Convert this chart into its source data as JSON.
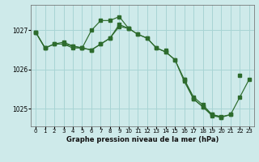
{
  "title": "Graphe pression niveau de la mer (hPa)",
  "bg_color": "#ceeaea",
  "grid_color": "#a8d4d4",
  "line_color": "#2d6b2d",
  "marker_color": "#2d6b2d",
  "ylim": [
    1024.55,
    1027.65
  ],
  "yticks": [
    1025,
    1026,
    1027
  ],
  "xlim": [
    -0.5,
    23.5
  ],
  "xticks": [
    0,
    1,
    2,
    3,
    4,
    5,
    6,
    7,
    8,
    9,
    10,
    11,
    12,
    13,
    14,
    15,
    16,
    17,
    18,
    19,
    20,
    21,
    22,
    23
  ],
  "series": [
    [
      1026.95,
      1026.55,
      1026.65,
      1026.65,
      1026.6,
      1026.55,
      1026.5,
      1026.65,
      1026.8,
      1027.15,
      1027.05,
      1026.9,
      1026.8,
      1026.55,
      1026.45,
      1026.25,
      1025.75,
      1025.3,
      1025.1,
      1024.85,
      1024.8,
      1024.85,
      1025.3,
      1025.75
    ],
    [
      1026.95,
      1026.55,
      1026.65,
      1026.7,
      1026.6,
      1026.55,
      1027.0,
      1027.25,
      1027.25,
      1027.35,
      1027.05,
      1026.9,
      1026.8,
      1026.55,
      1026.45,
      1026.25,
      1025.7,
      1025.25,
      1025.05,
      1024.85,
      1024.78,
      1024.85,
      null,
      null
    ],
    [
      1026.95,
      1026.55,
      null,
      1026.65,
      1026.55,
      1026.55,
      1026.5,
      1026.65,
      1026.8,
      1027.1,
      1027.05,
      null,
      null,
      null,
      1026.5,
      null,
      1025.75,
      1025.25,
      1025.05,
      1024.82,
      1024.78,
      null,
      1025.85,
      null
    ]
  ]
}
